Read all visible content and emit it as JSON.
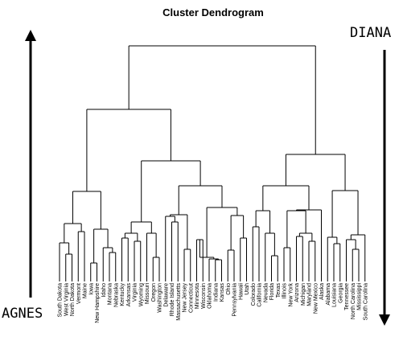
{
  "title": "Cluster Dendrogram",
  "left_label": "AGNES",
  "right_label": "DIANA",
  "leaves": [
    "South Dakota",
    "West Virginia",
    "North Dakota",
    "Vermont",
    "Maine",
    "Iowa",
    "New Hampshire",
    "Idaho",
    "Montana",
    "Nebraska",
    "Kentucky",
    "Arkansas",
    "Virginia",
    "Wyoming",
    "Missouri",
    "Oregon",
    "Washington",
    "Delaware",
    "Rhode Island",
    "Massachusetts",
    "New Jersey",
    "Connecticut",
    "Minnesota",
    "Wisconsin",
    "Oklahoma",
    "Indiana",
    "Kansas",
    "Ohio",
    "Pennsylvania",
    "Hawaii",
    "Utah",
    "Colorado",
    "California",
    "Nevada",
    "Florida",
    "Texas",
    "Illinois",
    "New York",
    "Arizona",
    "Michigan",
    "Maryland",
    "New Mexico",
    "Alaska",
    "Alabama",
    "Louisiana",
    "Georgia",
    "Tennessee",
    "North Carolina",
    "Mississippi",
    "South Carolina"
  ],
  "colors": {
    "line": "#000000",
    "background": "#ffffff"
  }
}
